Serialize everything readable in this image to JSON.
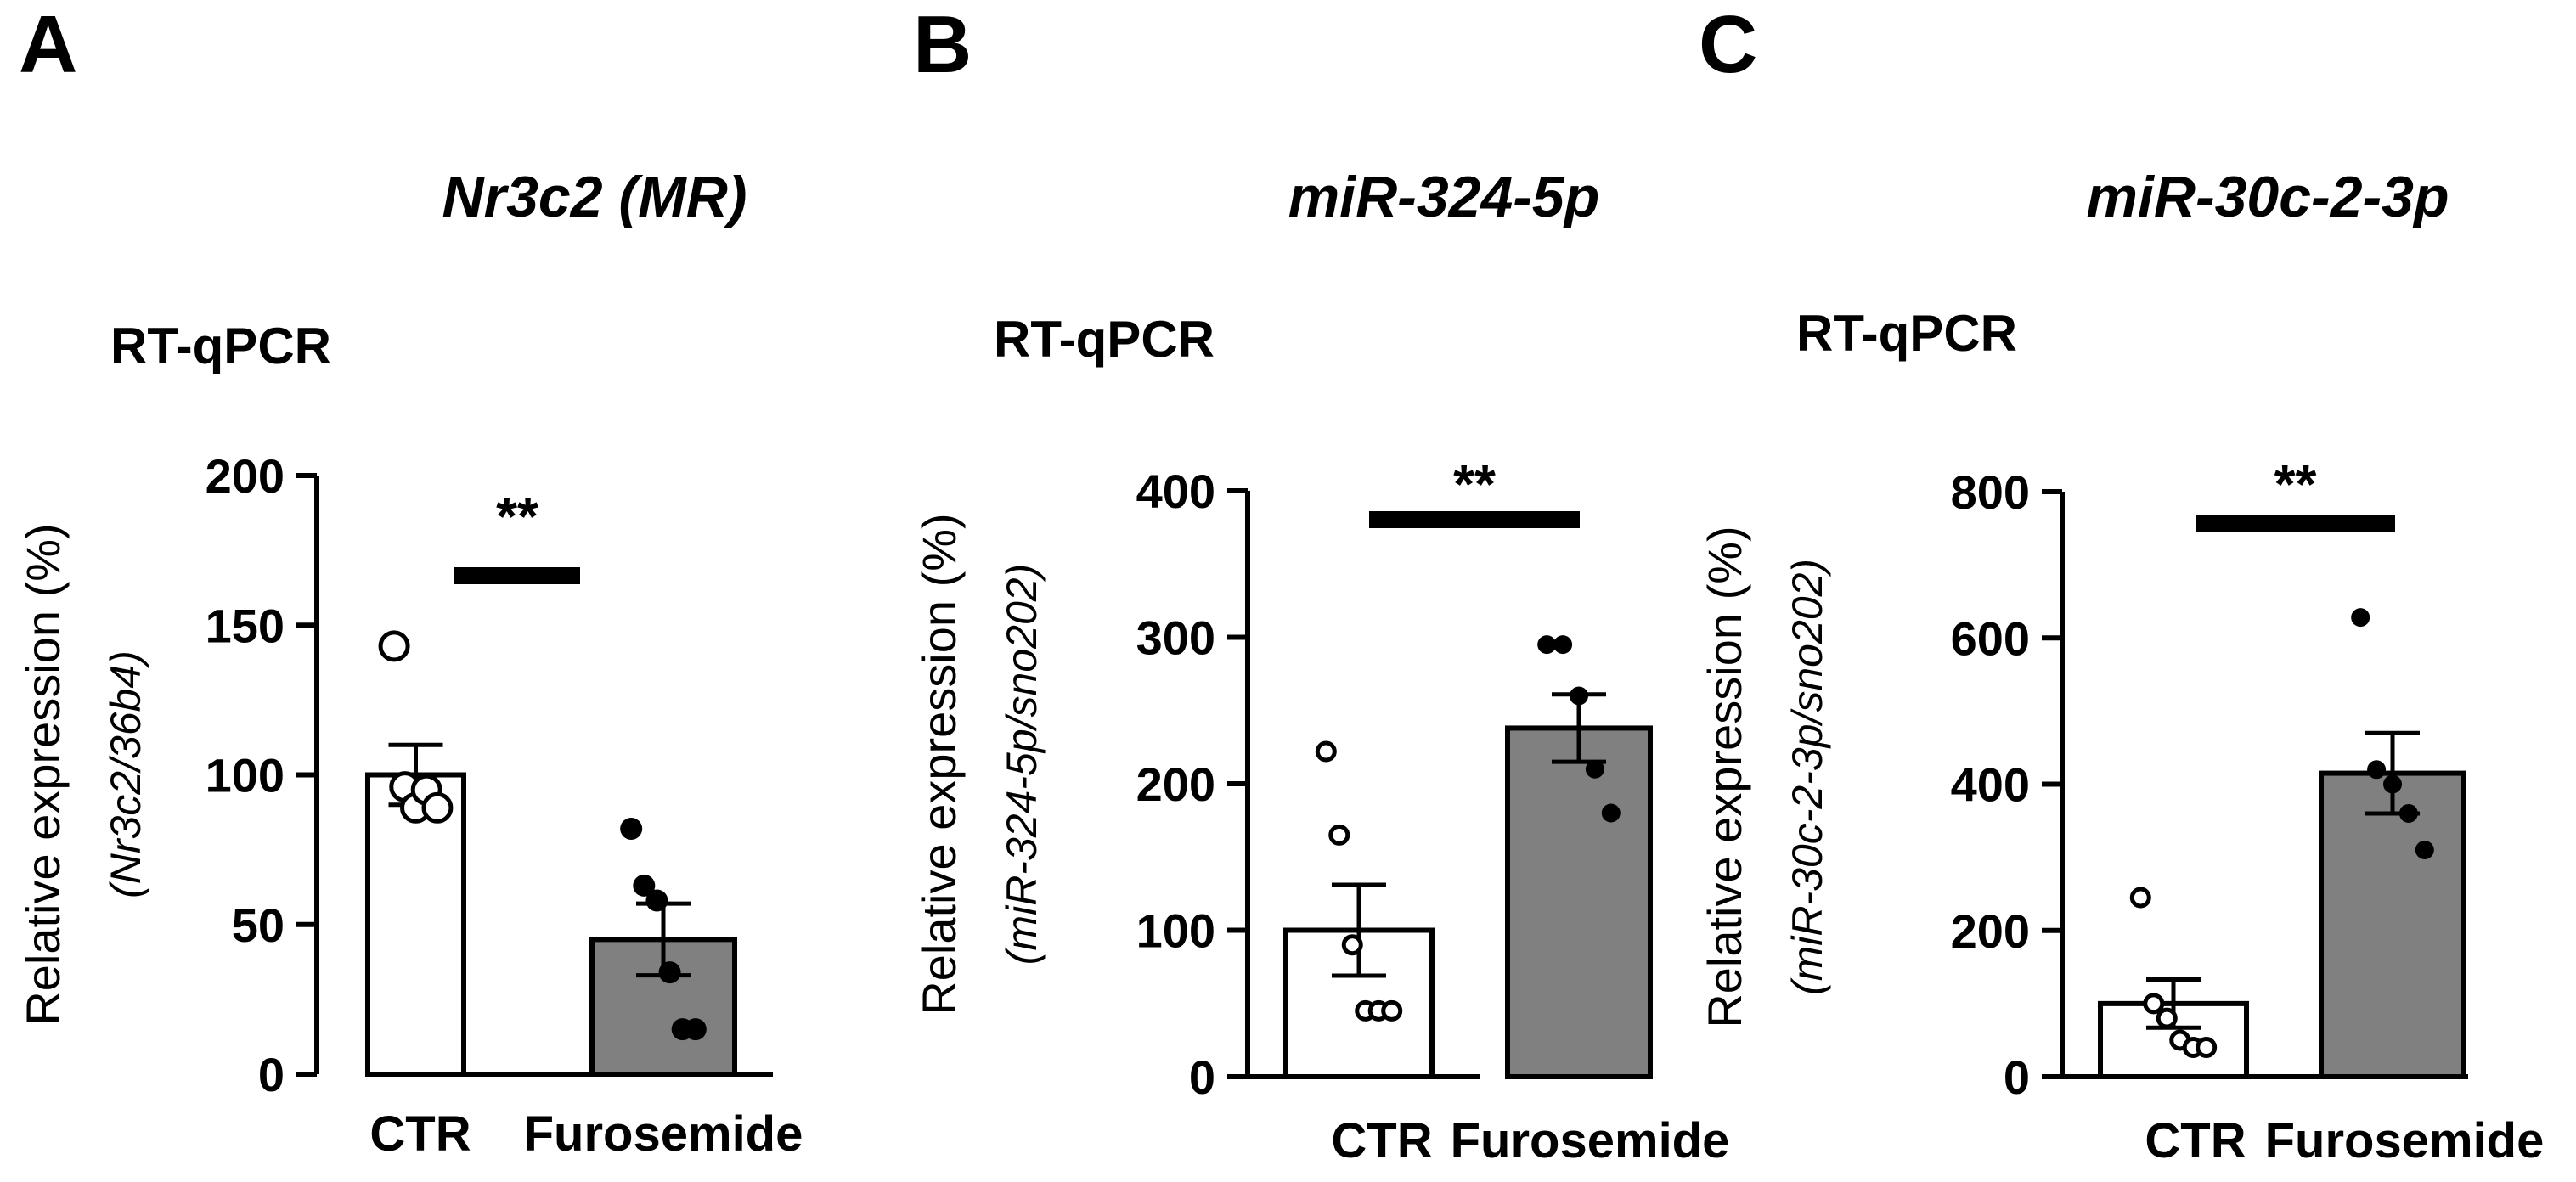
{
  "chart_data": [
    {
      "type": "bar",
      "panel_label": "A",
      "title": "Nr3c2 (MR)",
      "subtitle": "RT-qPCR",
      "ylabel": "Relative expression (%)",
      "ylabel_sub": "(Nr3c2/36b4)",
      "categories": [
        "CTR",
        "Furosemide"
      ],
      "values": [
        100,
        45
      ],
      "errors": [
        10,
        12
      ],
      "points": [
        [
          143,
          96,
          89,
          95,
          89
        ],
        [
          82,
          63,
          58,
          34,
          15,
          15
        ]
      ],
      "ylim": [
        0,
        200
      ],
      "yticks": [
        "0",
        "50",
        "100",
        "150",
        "200"
      ],
      "significance": "**",
      "grid": false
    },
    {
      "type": "bar",
      "panel_label": "B",
      "title": "miR-324-5p",
      "subtitle": "RT-qPCR",
      "ylabel": "Relative expression (%)",
      "ylabel_sub": "(miR-324-5p/sno202)",
      "categories": [
        "CTR",
        "Furosemide"
      ],
      "values": [
        100,
        238
      ],
      "errors": [
        31,
        23
      ],
      "points": [
        [
          222,
          165,
          90,
          45,
          45,
          45
        ],
        [
          295,
          295,
          260,
          210,
          180
        ]
      ],
      "ylim": [
        0,
        400
      ],
      "yticks": [
        "0",
        "100",
        "200",
        "300",
        "400"
      ],
      "significance": "**",
      "grid": false
    },
    {
      "type": "bar",
      "panel_label": "C",
      "title": "miR-30c-2-3p",
      "subtitle": "RT-qPCR",
      "ylabel": "Relative expression (%)",
      "ylabel_sub": "(miR-30c-2-3p/sno202)",
      "categories": [
        "CTR",
        "Furosemide"
      ],
      "values": [
        100,
        415
      ],
      "errors": [
        33,
        55
      ],
      "points": [
        [
          245,
          100,
          80,
          50,
          40,
          40
        ],
        [
          628,
          420,
          400,
          360,
          310
        ]
      ],
      "ylim": [
        0,
        800
      ],
      "yticks": [
        "0",
        "200",
        "400",
        "600",
        "800"
      ],
      "significance": "**",
      "grid": false
    }
  ],
  "colors": {
    "ctr_bar": "#ffffff",
    "furosemide_bar": "#808080",
    "ink": "#000000"
  }
}
